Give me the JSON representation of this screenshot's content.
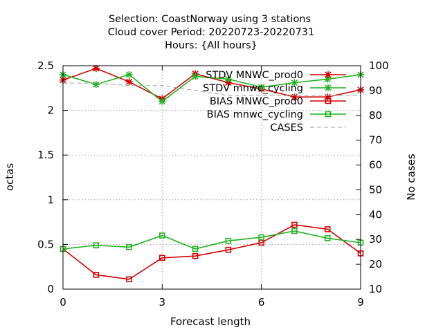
{
  "chart_data": {
    "type": "line",
    "title_lines": [
      "Selection: CoastNorway using     3 stations",
      "Cloud cover   Period: 20220723-20220731",
      "Hours: {All hours}"
    ],
    "xlabel": "Forecast length",
    "ylabel": "octas",
    "y2label": "No cases",
    "x": [
      0,
      1,
      2,
      3,
      4,
      5,
      6,
      7,
      8,
      9
    ],
    "xlim": [
      0,
      9
    ],
    "ylim": [
      0,
      2.5
    ],
    "y2lim": [
      10,
      100
    ],
    "x_ticks": [
      0,
      3,
      6,
      9
    ],
    "y_ticks": [
      "0",
      "0.5",
      "1",
      "1.5",
      "2",
      "2.5"
    ],
    "y2_ticks": [
      "10",
      "20",
      "30",
      "40",
      "50",
      "60",
      "70",
      "80",
      "90",
      "100"
    ],
    "grid": true,
    "legend_position": "top-right",
    "series": [
      {
        "name": "STDV MNWC_prod0",
        "axis": "y",
        "color": "#d40000",
        "marker": "star",
        "values": [
          2.34,
          2.47,
          2.32,
          2.13,
          2.41,
          2.31,
          2.24,
          2.15,
          2.15,
          2.23
        ]
      },
      {
        "name": "STDV mnwc_cycling",
        "axis": "y",
        "color": "#1fb21f",
        "marker": "star",
        "values": [
          2.4,
          2.29,
          2.4,
          2.1,
          2.38,
          2.35,
          2.26,
          2.31,
          2.35,
          2.4
        ]
      },
      {
        "name": "BIAS MNWC_prod0",
        "axis": "y",
        "color": "#d40000",
        "marker": "square",
        "values": [
          0.45,
          0.16,
          0.11,
          0.35,
          0.37,
          0.44,
          0.52,
          0.72,
          0.67,
          0.4
        ]
      },
      {
        "name": "BIAS mnwc_cycling",
        "axis": "y",
        "color": "#1fb21f",
        "marker": "square",
        "values": [
          0.45,
          0.49,
          0.47,
          0.6,
          0.45,
          0.54,
          0.58,
          0.65,
          0.57,
          0.52
        ]
      },
      {
        "name": "CASES",
        "axis": "y2",
        "color": "#a0a0a0",
        "marker": "none",
        "dashed": true,
        "values": [
          93,
          93,
          92,
          92,
          90,
          88,
          88,
          88,
          88,
          88
        ]
      }
    ]
  }
}
